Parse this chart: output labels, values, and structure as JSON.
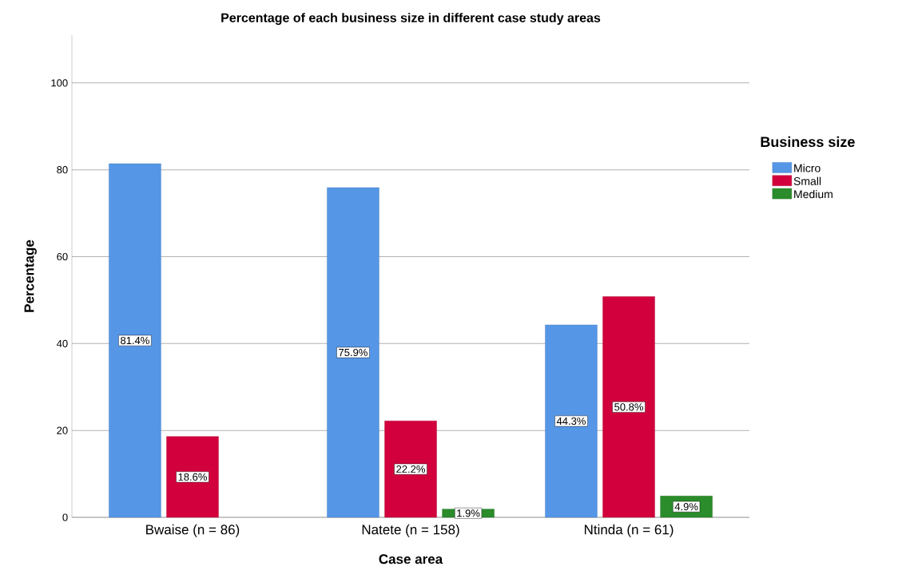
{
  "chart_data": {
    "type": "bar",
    "title": "Percentage of each business size in different case study areas",
    "xlabel": "Case area",
    "ylabel": "Percentage",
    "legend_title": "Business size",
    "categories": [
      "Bwaise (n = 86)",
      "Natete (n = 158)",
      "Ntinda (n = 61)"
    ],
    "series": [
      {
        "name": "Micro",
        "color": "#5596e6",
        "values": [
          81.4,
          75.9,
          44.3
        ],
        "value_labels": [
          "81.4%",
          "75.9%",
          "44.3%"
        ]
      },
      {
        "name": "Small",
        "color": "#d2003c",
        "values": [
          18.6,
          22.2,
          50.8
        ],
        "value_labels": [
          "18.6%",
          "22.2%",
          "50.8%"
        ]
      },
      {
        "name": "Medium",
        "color": "#2a8c2a",
        "values": [
          null,
          1.9,
          4.9
        ],
        "value_labels": [
          null,
          "1.9%",
          "4.9%"
        ]
      }
    ],
    "ylim": [
      0,
      111
    ],
    "yticks": [
      0,
      20,
      40,
      60,
      80,
      100
    ],
    "grid": "y",
    "legend": "right"
  }
}
